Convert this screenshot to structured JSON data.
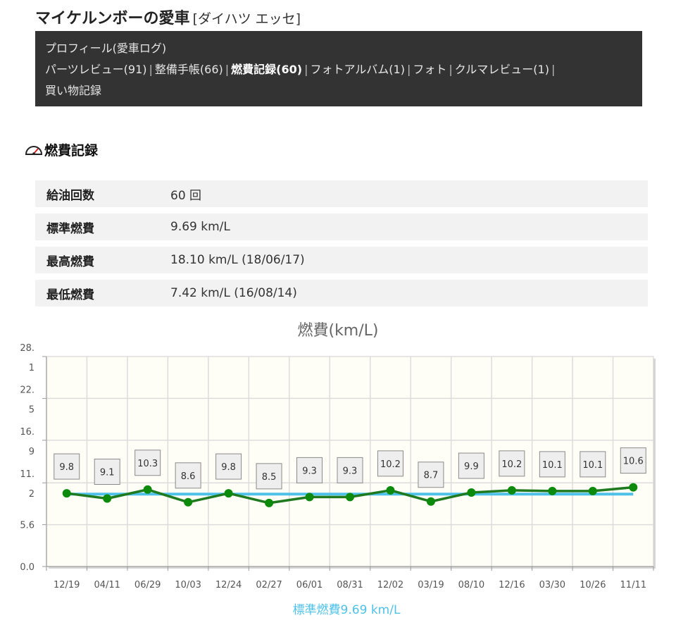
{
  "header": {
    "title": "マイケルンボーの愛車",
    "car": "[ダイハツ エッセ]"
  },
  "nav": {
    "profile": "プロフィール(愛車ログ)",
    "sep": "|",
    "parts_review": "パーツレビュー(91)",
    "maintenance": "整備手帳(66)",
    "fuel_log": "燃費記録(60)",
    "photo_album": "フォトアルバム(1)",
    "photo": "フォト",
    "car_review": "クルマレビュー(1)",
    "shopping": "買い物記録"
  },
  "section": {
    "title": "燃費記録"
  },
  "stats": [
    {
      "label": "給油回数",
      "value": "60 回"
    },
    {
      "label": "標準燃費",
      "value": "9.69 km/L"
    },
    {
      "label": "最高燃費",
      "value": "18.10 km/L (18/06/17)"
    },
    {
      "label": "最低燃費",
      "value": "7.42 km/L (16/08/14)"
    }
  ],
  "colors": {
    "fuel_line": "#1f7a1f",
    "fuel_point": "#0c8a0c",
    "standard_line": "#4fc1e9",
    "plot_bg": "#fffef6"
  },
  "chart_data": {
    "type": "line",
    "title": "燃費(km/L)",
    "categories": [
      "12/19",
      "04/11",
      "06/29",
      "10/03",
      "12/24",
      "02/27",
      "06/01",
      "08/31",
      "12/02",
      "03/19",
      "08/10",
      "12/16",
      "03/30",
      "10/26",
      "11/11"
    ],
    "series": [
      {
        "values": [
          9.8,
          9.1,
          10.3,
          8.6,
          9.8,
          8.5,
          9.3,
          9.3,
          10.2,
          8.7,
          9.9,
          10.2,
          10.1,
          10.1,
          10.6
        ]
      },
      {
        "name": "標準燃費9.69 km/L",
        "values": [
          9.69,
          9.69,
          9.69,
          9.69,
          9.69,
          9.69,
          9.69,
          9.69,
          9.69,
          9.69,
          9.69,
          9.69,
          9.69,
          9.69,
          9.69
        ]
      }
    ],
    "y_ticks": [
      {
        "value": 0.0,
        "label": [
          "0.0"
        ]
      },
      {
        "value": 5.6,
        "label": [
          "5.6"
        ]
      },
      {
        "value": 11.2,
        "label": [
          "11.",
          "2"
        ]
      },
      {
        "value": 16.9,
        "label": [
          "16.",
          "9"
        ]
      },
      {
        "value": 22.5,
        "label": [
          "22.",
          "5"
        ]
      },
      {
        "value": 28.1,
        "label": [
          "28.",
          "1"
        ]
      }
    ],
    "ylim": [
      0,
      28.1
    ],
    "grid": true,
    "data_labels": true,
    "legend": "bottom-center"
  }
}
